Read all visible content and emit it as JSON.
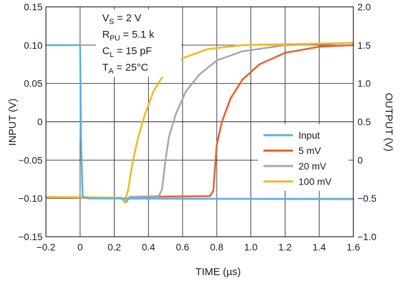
{
  "chart_data": {
    "type": "line",
    "title": "",
    "xlabel": "TIME (µs)",
    "ylabel_left": "INPUT (V)",
    "ylabel_right": "OUTPUT (V)",
    "xlim": [
      -0.2,
      1.6
    ],
    "ylim_left": [
      -0.15,
      0.15
    ],
    "ylim_right": [
      -1.0,
      2.0
    ],
    "x_ticks": [
      "−0.2",
      "0",
      "0.2",
      "0.4",
      "0.6",
      "0.8",
      "1.0",
      "1.2",
      "1.4",
      "1.6"
    ],
    "y_left_ticks": [
      "0.15",
      "0.10",
      "0.05",
      "0",
      "−0.05",
      "−0.10",
      "−0.15"
    ],
    "y_right_ticks": [
      "2.0",
      "1.5",
      "1.0",
      "0.5",
      "0",
      "−0.5",
      "−1.0"
    ],
    "grid": true,
    "legend_position": "lower-right",
    "conditions": {
      "vs": {
        "prefix": "V",
        "sub": "S",
        "value": " = 2 V"
      },
      "rpu": {
        "prefix": "R",
        "sub": "PU",
        "value": " = 5.1 k"
      },
      "cl": {
        "prefix": "C",
        "sub": "L",
        "value": " = 15 pF"
      },
      "ta": {
        "prefix": "T",
        "sub": "A",
        "value": " = 25°C"
      }
    },
    "series": [
      {
        "name": "Input",
        "axis": "left",
        "color": "#5aaee8",
        "points": [
          [
            -0.2,
            0.1
          ],
          [
            -0.01,
            0.1
          ],
          [
            0.0,
            0.1
          ],
          [
            0.005,
            -0.02
          ],
          [
            0.015,
            -0.098
          ],
          [
            0.05,
            -0.1
          ],
          [
            1.6,
            -0.101
          ]
        ]
      },
      {
        "name": "5 mV",
        "axis": "right",
        "color": "#e8602a",
        "points": [
          [
            -0.2,
            -0.48
          ],
          [
            0.25,
            -0.5
          ],
          [
            0.27,
            -0.55
          ],
          [
            0.29,
            -0.48
          ],
          [
            0.76,
            -0.47
          ],
          [
            0.78,
            -0.4
          ],
          [
            0.79,
            -0.1
          ],
          [
            0.8,
            0.2
          ],
          [
            0.83,
            0.5
          ],
          [
            0.88,
            0.8
          ],
          [
            0.95,
            1.05
          ],
          [
            1.05,
            1.25
          ],
          [
            1.2,
            1.4
          ],
          [
            1.4,
            1.48
          ],
          [
            1.6,
            1.5
          ]
        ]
      },
      {
        "name": "20 mV",
        "axis": "right",
        "color": "#a4aaa6",
        "points": [
          [
            -0.2,
            -0.48
          ],
          [
            0.25,
            -0.5
          ],
          [
            0.27,
            -0.55
          ],
          [
            0.29,
            -0.48
          ],
          [
            0.46,
            -0.47
          ],
          [
            0.48,
            -0.38
          ],
          [
            0.5,
            0.0
          ],
          [
            0.52,
            0.3
          ],
          [
            0.56,
            0.6
          ],
          [
            0.62,
            0.9
          ],
          [
            0.7,
            1.12
          ],
          [
            0.8,
            1.3
          ],
          [
            0.95,
            1.42
          ],
          [
            1.2,
            1.5
          ],
          [
            1.6,
            1.53
          ]
        ]
      },
      {
        "name": "100 mV",
        "axis": "right",
        "color": "#f6b61e",
        "points": [
          [
            -0.2,
            -0.48
          ],
          [
            0.24,
            -0.49
          ],
          [
            0.26,
            -0.55
          ],
          [
            0.28,
            -0.4
          ],
          [
            0.31,
            0.0
          ],
          [
            0.34,
            0.3
          ],
          [
            0.38,
            0.6
          ],
          [
            0.43,
            0.9
          ],
          [
            0.5,
            1.15
          ],
          [
            0.6,
            1.33
          ],
          [
            0.75,
            1.45
          ],
          [
            0.95,
            1.5
          ],
          [
            1.6,
            1.53
          ]
        ]
      }
    ]
  }
}
